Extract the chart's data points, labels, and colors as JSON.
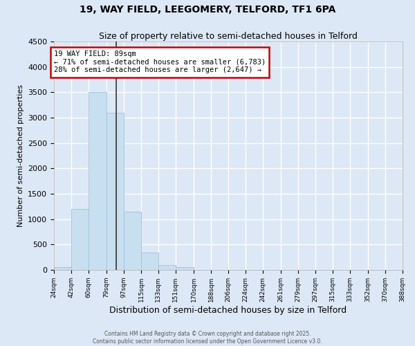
{
  "title": "19, WAY FIELD, LEEGOMERY, TELFORD, TF1 6PA",
  "subtitle": "Size of property relative to semi-detached houses in Telford",
  "xlabel": "Distribution of semi-detached houses by size in Telford",
  "ylabel": "Number of semi-detached properties",
  "bin_edges": [
    24,
    42,
    60,
    79,
    97,
    115,
    133,
    151,
    170,
    188,
    206,
    224,
    242,
    261,
    279,
    297,
    315,
    333,
    352,
    370,
    388
  ],
  "bar_heights": [
    60,
    1200,
    3500,
    3100,
    1150,
    340,
    100,
    50,
    5,
    5,
    5,
    3,
    2,
    2,
    2,
    1,
    1,
    1,
    1,
    1
  ],
  "bar_color": "#c8dff0",
  "bar_edgecolor": "#a0c0dc",
  "property_value": 89,
  "property_label": "19 WAY FIELD: 89sqm",
  "annotation_line1": "← 71% of semi-detached houses are smaller (6,783)",
  "annotation_line2": "28% of semi-detached houses are larger (2,647) →",
  "annotation_box_color": "#ffffff",
  "annotation_box_edgecolor": "#cc0000",
  "vline_color": "#333333",
  "ylim": [
    0,
    4500
  ],
  "yticks": [
    0,
    500,
    1000,
    1500,
    2000,
    2500,
    3000,
    3500,
    4000,
    4500
  ],
  "bg_color": "#dce8f5",
  "grid_color": "#ffffff",
  "footer_line1": "Contains HM Land Registry data © Crown copyright and database right 2025.",
  "footer_line2": "Contains public sector information licensed under the Open Government Licence v3.0.",
  "tick_labels": [
    "24sqm",
    "42sqm",
    "60sqm",
    "79sqm",
    "97sqm",
    "115sqm",
    "133sqm",
    "151sqm",
    "170sqm",
    "188sqm",
    "206sqm",
    "224sqm",
    "242sqm",
    "261sqm",
    "279sqm",
    "297sqm",
    "315sqm",
    "333sqm",
    "352sqm",
    "370sqm",
    "388sqm"
  ]
}
